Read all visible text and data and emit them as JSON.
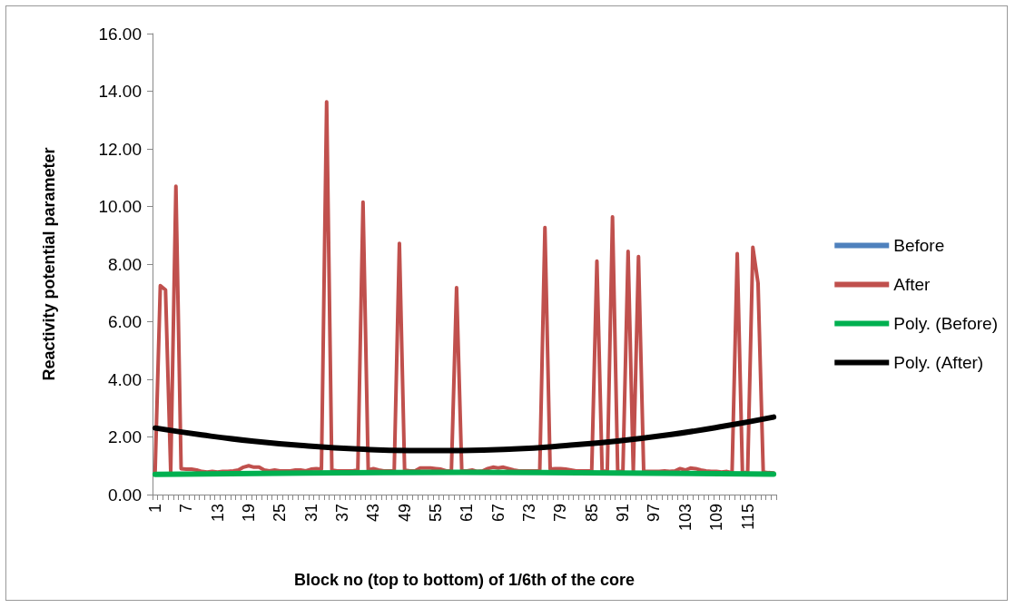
{
  "chart_data": {
    "type": "line",
    "xlabel": "Block no (top to bottom) of 1/6th of the core",
    "ylabel": "Reactivity potential parameter",
    "categories": [
      "1",
      null,
      null,
      null,
      null,
      null,
      "7",
      null,
      null,
      null,
      null,
      null,
      "13",
      null,
      null,
      null,
      null,
      null,
      "19",
      null,
      null,
      null,
      null,
      null,
      "25",
      null,
      null,
      null,
      null,
      null,
      "31",
      null,
      null,
      null,
      null,
      null,
      "37",
      null,
      null,
      null,
      null,
      null,
      "43",
      null,
      null,
      null,
      null,
      null,
      "49",
      null,
      null,
      null,
      null,
      null,
      "55",
      null,
      null,
      null,
      null,
      null,
      "61",
      null,
      null,
      null,
      null,
      null,
      "67",
      null,
      null,
      null,
      null,
      null,
      "73",
      null,
      null,
      null,
      null,
      null,
      "79",
      null,
      null,
      null,
      null,
      null,
      "85",
      null,
      null,
      null,
      null,
      null,
      "91",
      null,
      null,
      null,
      null,
      null,
      "97",
      null,
      null,
      null,
      null,
      null,
      "103",
      null,
      null,
      null,
      null,
      null,
      "109",
      null,
      null,
      null,
      null,
      null,
      "115",
      null,
      null,
      null,
      null,
      null
    ],
    "ylim": [
      0,
      16
    ],
    "yticks": [
      {
        "value": 0,
        "label": "0.00"
      },
      {
        "value": 2,
        "label": "2.00"
      },
      {
        "value": 4,
        "label": "4.00"
      },
      {
        "value": 6,
        "label": "6.00"
      },
      {
        "value": 8,
        "label": "8.00"
      },
      {
        "value": 10,
        "label": "10.00"
      },
      {
        "value": 12,
        "label": "12.00"
      },
      {
        "value": 14,
        "label": "14.00"
      },
      {
        "value": 16,
        "label": "16.00"
      }
    ],
    "grid": false,
    "legend": "right",
    "marker": "none",
    "series": [
      {
        "name": "Before",
        "color": "#4f81bd",
        "values": [
          null,
          null,
          null,
          null,
          null,
          null,
          null,
          null,
          null,
          null,
          null,
          null,
          null,
          null,
          null,
          null,
          null,
          null,
          null,
          null,
          null,
          null,
          null,
          null,
          null,
          null,
          null,
          null,
          null,
          null,
          null,
          null,
          null,
          null,
          null,
          null,
          null,
          null,
          null,
          null,
          null,
          null,
          null,
          null,
          null,
          null,
          null,
          null,
          null,
          null,
          null,
          null,
          null,
          null,
          null,
          null,
          null,
          null,
          null,
          null,
          null,
          null,
          null,
          null,
          null,
          null,
          null,
          null,
          null,
          null,
          null,
          null,
          null,
          null,
          null,
          null,
          null,
          null,
          null,
          null,
          null,
          null,
          null,
          null,
          null,
          null,
          null,
          null,
          null,
          null,
          null,
          null,
          null,
          null,
          null,
          null,
          null,
          null,
          null,
          null,
          null,
          null,
          null,
          null,
          null,
          null,
          null,
          null,
          null,
          null,
          null,
          null,
          null,
          null,
          null,
          null,
          null,
          null,
          null,
          null
        ]
      },
      {
        "name": "After",
        "color": "#c0504d",
        "values": [
          0.8,
          7.25,
          7.1,
          0.8,
          10.7,
          0.9,
          0.88,
          0.88,
          0.85,
          0.8,
          0.78,
          0.8,
          0.78,
          0.8,
          0.8,
          0.82,
          0.85,
          0.95,
          1.0,
          0.95,
          0.95,
          0.85,
          0.82,
          0.85,
          0.82,
          0.82,
          0.82,
          0.85,
          0.85,
          0.82,
          0.88,
          0.9,
          0.88,
          13.63,
          0.85,
          0.82,
          0.82,
          0.82,
          0.82,
          0.85,
          10.15,
          0.85,
          0.9,
          0.85,
          0.82,
          0.82,
          0.82,
          8.72,
          0.85,
          0.82,
          0.82,
          0.92,
          0.92,
          0.92,
          0.9,
          0.88,
          0.82,
          0.82,
          7.18,
          0.82,
          0.82,
          0.85,
          0.8,
          0.82,
          0.9,
          0.95,
          0.92,
          0.95,
          0.9,
          0.85,
          0.82,
          0.82,
          0.82,
          0.82,
          0.82,
          9.27,
          0.88,
          0.9,
          0.9,
          0.88,
          0.85,
          0.82,
          0.82,
          0.82,
          0.82,
          8.1,
          0.82,
          0.8,
          9.64,
          0.8,
          0.8,
          8.44,
          0.8,
          8.26,
          0.8,
          0.8,
          0.8,
          0.8,
          0.82,
          0.8,
          0.82,
          0.9,
          0.85,
          0.92,
          0.9,
          0.85,
          0.82,
          0.8,
          0.8,
          0.78,
          0.8,
          0.76,
          8.36,
          0.76,
          0.76,
          8.58,
          7.34,
          0.78,
          0.76,
          0.75
        ]
      },
      {
        "name": "Poly. (Before)",
        "type": "line",
        "color": "#00b050",
        "values": [
          0.7,
          null,
          null,
          null,
          null,
          null,
          null,
          null,
          null,
          null,
          null,
          null,
          null,
          null,
          null,
          null,
          null,
          null,
          null,
          null,
          null,
          null,
          null,
          null,
          null,
          null,
          null,
          null,
          null,
          0.75,
          null,
          null,
          null,
          null,
          null,
          null,
          null,
          null,
          null,
          null,
          null,
          null,
          null,
          null,
          null,
          null,
          null,
          null,
          null,
          null,
          null,
          null,
          null,
          null,
          null,
          null,
          null,
          null,
          null,
          0.77,
          null,
          null,
          null,
          null,
          null,
          null,
          null,
          null,
          null,
          null,
          null,
          null,
          null,
          null,
          null,
          null,
          null,
          null,
          null,
          null,
          null,
          null,
          null,
          null,
          null,
          null,
          null,
          null,
          null,
          0.75,
          null,
          null,
          null,
          null,
          null,
          null,
          null,
          null,
          null,
          null,
          null,
          null,
          null,
          null,
          null,
          null,
          null,
          null,
          null,
          null,
          null,
          null,
          null,
          null,
          null,
          null,
          null,
          null,
          null,
          0.71
        ]
      },
      {
        "name": "Poly. (After)",
        "type": "line",
        "color": "#000000",
        "values": [
          2.31,
          null,
          null,
          null,
          null,
          null,
          null,
          null,
          null,
          2.07,
          null,
          null,
          null,
          null,
          null,
          null,
          null,
          null,
          null,
          1.85,
          null,
          null,
          null,
          null,
          null,
          null,
          null,
          null,
          null,
          1.69,
          null,
          null,
          null,
          null,
          null,
          null,
          null,
          null,
          null,
          1.58,
          null,
          null,
          null,
          null,
          null,
          null,
          null,
          null,
          null,
          1.53,
          null,
          null,
          null,
          null,
          null,
          null,
          null,
          null,
          null,
          1.53,
          null,
          null,
          null,
          null,
          null,
          null,
          null,
          null,
          null,
          1.58,
          null,
          null,
          null,
          null,
          null,
          null,
          null,
          null,
          null,
          1.7,
          null,
          null,
          null,
          null,
          null,
          null,
          null,
          null,
          null,
          1.86,
          null,
          null,
          null,
          null,
          null,
          null,
          null,
          null,
          null,
          2.08,
          null,
          null,
          null,
          null,
          null,
          null,
          null,
          null,
          null,
          2.36,
          null,
          null,
          null,
          null,
          null,
          null,
          null,
          null,
          null,
          2.69
        ]
      }
    ]
  }
}
